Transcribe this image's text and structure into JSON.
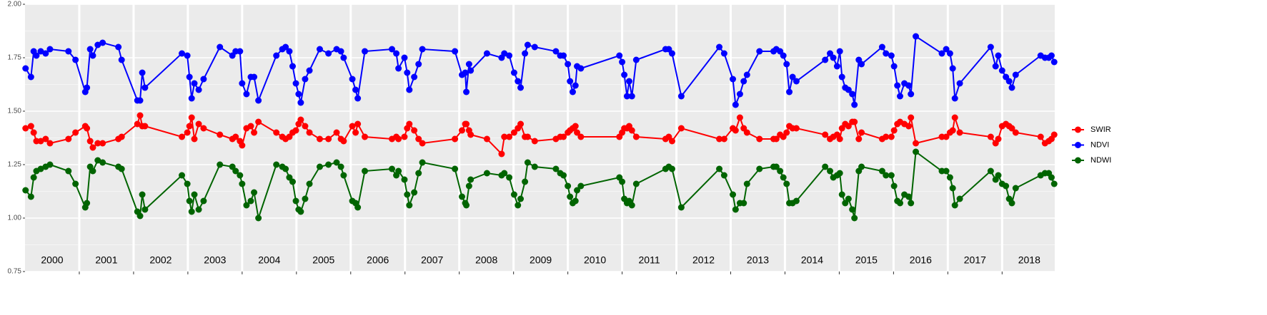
{
  "chart_data": {
    "type": "line",
    "x": [
      2000.01,
      2000.11,
      2000.16,
      2000.21,
      2000.29,
      2000.38,
      2000.46,
      2000.8,
      2000.93,
      2001.11,
      2001.14,
      2001.2,
      2001.25,
      2001.34,
      2001.43,
      2001.72,
      2001.78,
      2002.07,
      2002.12,
      2002.16,
      2002.21,
      2002.89,
      2002.99,
      2003.03,
      2003.07,
      2003.12,
      2003.2,
      2003.29,
      2003.59,
      2003.82,
      2003.88,
      2003.96,
      2004,
      2004.08,
      2004.16,
      2004.22,
      2004.3,
      2004.63,
      2004.74,
      2004.8,
      2004.87,
      2004.93,
      2004.99,
      2005.04,
      2005.08,
      2005.16,
      2005.24,
      2005.43,
      2005.59,
      2005.74,
      2005.82,
      2005.87,
      2006.03,
      2006.09,
      2006.13,
      2006.26,
      2006.76,
      2006.84,
      2006.88,
      2006.99,
      2007.04,
      2007.08,
      2007.17,
      2007.25,
      2007.32,
      2007.92,
      2008.05,
      2008.11,
      2008.13,
      2008.18,
      2008.21,
      2008.51,
      2008.78,
      2008.83,
      2008.92,
      2009.01,
      2009.08,
      2009.13,
      2009.21,
      2009.26,
      2009.39,
      2009.78,
      2009.86,
      2009.92,
      2010,
      2010.04,
      2010.09,
      2010.14,
      2010.17,
      2010.24,
      2010.95,
      2011,
      2011.04,
      2011.09,
      2011.13,
      2011.18,
      2011.26,
      2011.8,
      2011.86,
      2011.92,
      2012.09,
      2012.79,
      2012.88,
      2013.04,
      2013.09,
      2013.17,
      2013.24,
      2013.3,
      2013.53,
      2013.79,
      2013.84,
      2013.91,
      2013.97,
      2014.03,
      2014.08,
      2014.14,
      2014.21,
      2014.74,
      2014.83,
      2014.89,
      2014.96,
      2015.01,
      2015.05,
      2015.11,
      2015.17,
      2015.24,
      2015.28,
      2015.36,
      2015.41,
      2015.79,
      2015.86,
      2015.96,
      2016.01,
      2016.07,
      2016.12,
      2016.2,
      2016.28,
      2016.32,
      2016.41,
      2016.89,
      2016.97,
      2017.04,
      2017.09,
      2017.13,
      2017.22,
      2017.79,
      2017.88,
      2017.93,
      2018,
      2018.07,
      2018.13,
      2018.18,
      2018.25,
      2018.71,
      2018.79,
      2018.86,
      2018.91,
      2018.96
    ],
    "series": [
      {
        "name": "SWIR",
        "color": "#ff0000",
        "values": [
          1.42,
          1.43,
          1.4,
          1.36,
          1.36,
          1.37,
          1.35,
          1.37,
          1.4,
          1.43,
          1.42,
          1.36,
          1.33,
          1.35,
          1.35,
          1.37,
          1.38,
          1.44,
          1.48,
          1.43,
          1.43,
          1.38,
          1.4,
          1.43,
          1.47,
          1.37,
          1.44,
          1.42,
          1.39,
          1.37,
          1.38,
          1.36,
          1.34,
          1.42,
          1.43,
          1.4,
          1.45,
          1.4,
          1.38,
          1.37,
          1.38,
          1.4,
          1.41,
          1.44,
          1.46,
          1.43,
          1.4,
          1.37,
          1.37,
          1.4,
          1.37,
          1.36,
          1.43,
          1.4,
          1.44,
          1.38,
          1.37,
          1.38,
          1.37,
          1.38,
          1.42,
          1.44,
          1.41,
          1.37,
          1.35,
          1.37,
          1.41,
          1.44,
          1.44,
          1.41,
          1.39,
          1.37,
          1.3,
          1.38,
          1.38,
          1.4,
          1.42,
          1.44,
          1.38,
          1.38,
          1.36,
          1.37,
          1.38,
          1.38,
          1.4,
          1.41,
          1.42,
          1.43,
          1.4,
          1.38,
          1.38,
          1.4,
          1.42,
          1.42,
          1.43,
          1.41,
          1.38,
          1.37,
          1.38,
          1.36,
          1.42,
          1.37,
          1.37,
          1.42,
          1.41,
          1.47,
          1.42,
          1.4,
          1.37,
          1.37,
          1.37,
          1.39,
          1.38,
          1.4,
          1.43,
          1.42,
          1.42,
          1.39,
          1.37,
          1.38,
          1.39,
          1.37,
          1.42,
          1.44,
          1.43,
          1.45,
          1.45,
          1.37,
          1.4,
          1.37,
          1.38,
          1.38,
          1.41,
          1.44,
          1.45,
          1.44,
          1.43,
          1.47,
          1.35,
          1.38,
          1.38,
          1.4,
          1.41,
          1.47,
          1.4,
          1.38,
          1.35,
          1.37,
          1.43,
          1.44,
          1.43,
          1.42,
          1.4,
          1.38,
          1.35,
          1.36,
          1.37,
          1.39
        ]
      },
      {
        "name": "NDVI",
        "color": "#0000ff",
        "values": [
          1.7,
          1.66,
          1.78,
          1.76,
          1.78,
          1.77,
          1.79,
          1.78,
          1.74,
          1.59,
          1.61,
          1.79,
          1.76,
          1.81,
          1.82,
          1.8,
          1.74,
          1.55,
          1.55,
          1.68,
          1.61,
          1.77,
          1.76,
          1.66,
          1.56,
          1.63,
          1.6,
          1.65,
          1.8,
          1.76,
          1.78,
          1.78,
          1.63,
          1.58,
          1.66,
          1.66,
          1.55,
          1.76,
          1.79,
          1.8,
          1.78,
          1.71,
          1.63,
          1.58,
          1.54,
          1.65,
          1.69,
          1.79,
          1.77,
          1.79,
          1.78,
          1.75,
          1.65,
          1.6,
          1.56,
          1.78,
          1.79,
          1.77,
          1.7,
          1.75,
          1.68,
          1.6,
          1.66,
          1.72,
          1.79,
          1.78,
          1.67,
          1.68,
          1.59,
          1.72,
          1.69,
          1.77,
          1.75,
          1.77,
          1.76,
          1.68,
          1.64,
          1.61,
          1.77,
          1.81,
          1.8,
          1.78,
          1.76,
          1.76,
          1.72,
          1.64,
          1.59,
          1.62,
          1.71,
          1.7,
          1.76,
          1.73,
          1.67,
          1.57,
          1.64,
          1.57,
          1.74,
          1.79,
          1.79,
          1.77,
          1.57,
          1.8,
          1.77,
          1.65,
          1.53,
          1.58,
          1.64,
          1.67,
          1.78,
          1.78,
          1.79,
          1.78,
          1.76,
          1.72,
          1.59,
          1.66,
          1.64,
          1.74,
          1.77,
          1.75,
          1.71,
          1.78,
          1.66,
          1.61,
          1.6,
          1.58,
          1.53,
          1.74,
          1.72,
          1.8,
          1.77,
          1.76,
          1.71,
          1.62,
          1.57,
          1.63,
          1.62,
          1.58,
          1.85,
          1.77,
          1.79,
          1.77,
          1.7,
          1.56,
          1.63,
          1.8,
          1.71,
          1.76,
          1.69,
          1.66,
          1.64,
          1.61,
          1.67,
          1.76,
          1.75,
          1.75,
          1.76,
          1.73
        ]
      },
      {
        "name": "NDWI",
        "color": "#006400",
        "values": [
          1.13,
          1.1,
          1.19,
          1.22,
          1.23,
          1.24,
          1.25,
          1.22,
          1.16,
          1.05,
          1.07,
          1.24,
          1.22,
          1.27,
          1.26,
          1.24,
          1.23,
          1.03,
          1.01,
          1.11,
          1.04,
          1.2,
          1.16,
          1.08,
          1.03,
          1.11,
          1.04,
          1.08,
          1.25,
          1.24,
          1.22,
          1.2,
          1.16,
          1.06,
          1.08,
          1.12,
          1.0,
          1.25,
          1.24,
          1.23,
          1.19,
          1.17,
          1.08,
          1.04,
          1.03,
          1.09,
          1.16,
          1.24,
          1.25,
          1.26,
          1.24,
          1.2,
          1.08,
          1.07,
          1.05,
          1.22,
          1.23,
          1.2,
          1.22,
          1.18,
          1.11,
          1.06,
          1.12,
          1.21,
          1.26,
          1.23,
          1.1,
          1.07,
          1.06,
          1.15,
          1.18,
          1.21,
          1.2,
          1.21,
          1.19,
          1.11,
          1.06,
          1.09,
          1.17,
          1.26,
          1.24,
          1.23,
          1.21,
          1.2,
          1.15,
          1.1,
          1.07,
          1.08,
          1.13,
          1.15,
          1.19,
          1.17,
          1.09,
          1.07,
          1.08,
          1.06,
          1.16,
          1.23,
          1.24,
          1.23,
          1.05,
          1.23,
          1.2,
          1.11,
          1.04,
          1.07,
          1.07,
          1.16,
          1.23,
          1.24,
          1.24,
          1.22,
          1.19,
          1.16,
          1.07,
          1.07,
          1.08,
          1.24,
          1.22,
          1.19,
          1.2,
          1.21,
          1.11,
          1.07,
          1.09,
          1.04,
          1.0,
          1.22,
          1.24,
          1.22,
          1.2,
          1.2,
          1.15,
          1.08,
          1.07,
          1.11,
          1.1,
          1.07,
          1.31,
          1.22,
          1.22,
          1.19,
          1.14,
          1.06,
          1.09,
          1.22,
          1.18,
          1.2,
          1.16,
          1.15,
          1.09,
          1.07,
          1.14,
          1.2,
          1.21,
          1.21,
          1.19,
          1.16
        ]
      }
    ],
    "xlim": [
      2000,
      2018.97
    ],
    "xticks": [
      2001,
      2002,
      2003,
      2004,
      2005,
      2006,
      2007,
      2008,
      2009,
      2010,
      2011,
      2012,
      2013,
      2014,
      2015,
      2016,
      2017,
      2018
    ],
    "year_labels": [
      {
        "value": 2000.5,
        "label": "2000"
      },
      {
        "value": 2001.5,
        "label": "2001"
      },
      {
        "value": 2002.5,
        "label": "2002"
      },
      {
        "value": 2003.5,
        "label": "2003"
      },
      {
        "value": 2004.5,
        "label": "2004"
      },
      {
        "value": 2005.5,
        "label": "2005"
      },
      {
        "value": 2006.5,
        "label": "2006"
      },
      {
        "value": 2007.5,
        "label": "2007"
      },
      {
        "value": 2008.5,
        "label": "2008"
      },
      {
        "value": 2009.5,
        "label": "2009"
      },
      {
        "value": 2010.5,
        "label": "2010"
      },
      {
        "value": 2011.5,
        "label": "2011"
      },
      {
        "value": 2012.5,
        "label": "2012"
      },
      {
        "value": 2013.5,
        "label": "2013"
      },
      {
        "value": 2014.5,
        "label": "2014"
      },
      {
        "value": 2015.5,
        "label": "2015"
      },
      {
        "value": 2016.5,
        "label": "2016"
      },
      {
        "value": 2017.5,
        "label": "2017"
      },
      {
        "value": 2018.5,
        "label": "2018"
      }
    ],
    "ylim": [
      0.75,
      2.0
    ],
    "yticks": [
      0.75,
      {
        "value": 1.0,
        "label": "1.00"
      },
      1.25,
      {
        "value": 1.5,
        "label": "1.50"
      },
      1.75,
      {
        "value": 2.0,
        "label": "2.00"
      }
    ],
    "grid": true,
    "legend": "right"
  }
}
